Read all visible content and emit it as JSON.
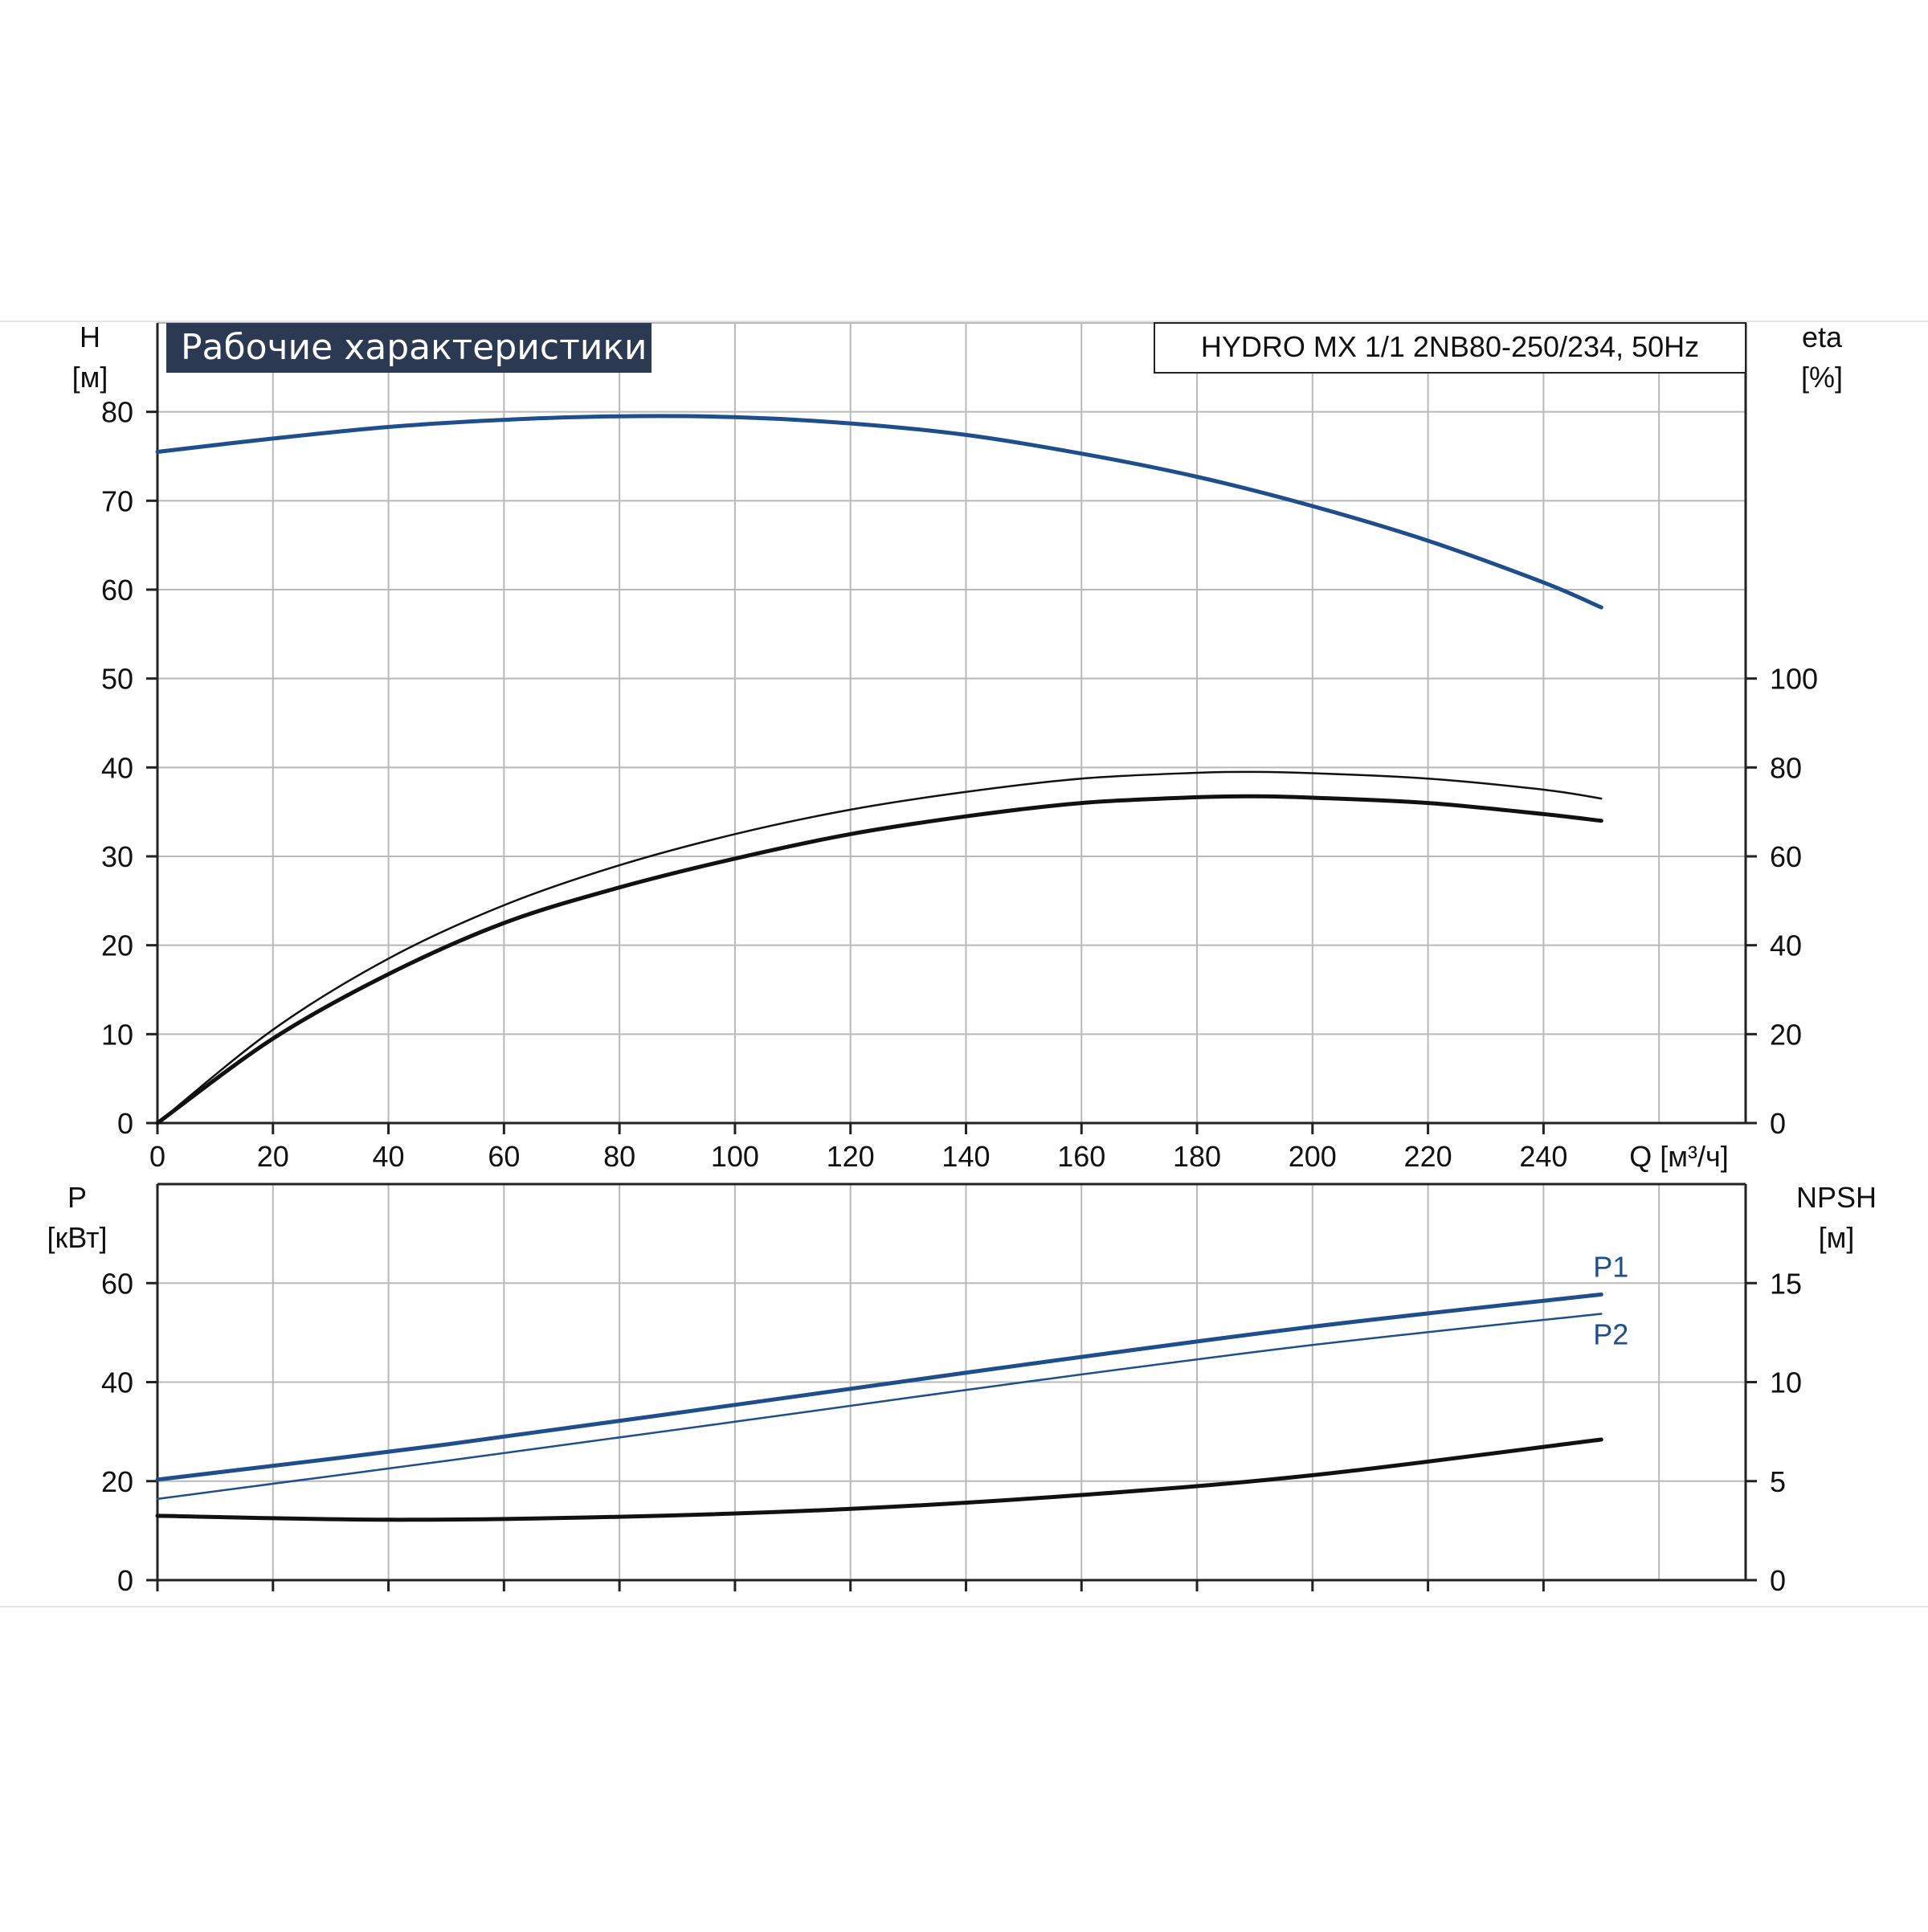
{
  "colors": {
    "background": "#ffffff",
    "grid": "#b9b9b9",
    "axis": "#222222",
    "curve_blue": "#1f4e8c",
    "curve_black": "#111111",
    "title_bg": "#2b3a52",
    "title_fg": "#ffffff"
  },
  "header": {
    "title": "Рабочие характеристики",
    "model": "HYDRO MX 1/1 2NB80-250/234, 50Hz"
  },
  "chart_data": [
    {
      "type": "line",
      "panel": "top",
      "title": "Рабочие характеристики",
      "subtitle": "HYDRO MX 1/1 2NB80-250/234, 50Hz",
      "grid": true,
      "xlabel": "Q [м³/ч]",
      "xlim": [
        0,
        275
      ],
      "xticks": [
        0,
        20,
        40,
        60,
        80,
        100,
        120,
        140,
        160,
        180,
        200,
        220,
        240
      ],
      "ylabel_left": "H",
      "ylabel_left_unit": "[м]",
      "ylim_left": [
        0,
        90
      ],
      "yticks_left": [
        0,
        10,
        20,
        30,
        40,
        50,
        60,
        70,
        80
      ],
      "ylabel_right": "eta",
      "ylabel_right_unit": "[%]",
      "ylim_right": [
        0,
        180
      ],
      "yticks_right": [
        0,
        20,
        40,
        60,
        80,
        100
      ],
      "series": [
        {
          "axis": "left",
          "color": "#1f4e8c",
          "stroke": "thick",
          "x": [
            0,
            20,
            40,
            60,
            80,
            100,
            120,
            140,
            160,
            180,
            200,
            220,
            240,
            250
          ],
          "y": [
            75.5,
            77.0,
            78.3,
            79.1,
            79.5,
            79.4,
            78.7,
            77.4,
            75.3,
            72.7,
            69.4,
            65.5,
            60.8,
            58.0
          ]
        },
        {
          "axis": "right",
          "color": "#111111",
          "stroke": "thin",
          "x": [
            0,
            20,
            40,
            60,
            80,
            100,
            120,
            140,
            160,
            180,
            190,
            200,
            220,
            240,
            250
          ],
          "y": [
            0,
            21,
            37,
            49,
            58,
            65,
            70.5,
            74.5,
            77.5,
            78.8,
            79,
            78.7,
            77.5,
            75,
            73
          ]
        },
        {
          "axis": "right",
          "color": "#111111",
          "stroke": "thick",
          "x": [
            0,
            20,
            40,
            60,
            80,
            100,
            120,
            140,
            160,
            180,
            190,
            200,
            220,
            240,
            250
          ],
          "y": [
            0,
            19,
            33.5,
            45,
            53,
            59.5,
            65,
            69,
            72,
            73.3,
            73.5,
            73.2,
            72,
            69.5,
            68
          ]
        }
      ]
    },
    {
      "type": "line",
      "panel": "bottom",
      "grid": true,
      "xlim": [
        0,
        275
      ],
      "ylabel_left": "P",
      "ylabel_left_unit": "[кВт]",
      "ylim_left": [
        0,
        80
      ],
      "yticks_left": [
        0,
        20,
        40,
        60
      ],
      "ylabel_right": "NPSH",
      "ylabel_right_unit": "[м]",
      "ylim_right": [
        0,
        20
      ],
      "yticks_right": [
        0,
        5,
        10,
        15
      ],
      "series": [
        {
          "name": "P1",
          "axis": "left",
          "color": "#1f4e8c",
          "stroke": "thick",
          "x": [
            0,
            50,
            100,
            150,
            200,
            250
          ],
          "y": [
            20.3,
            27.4,
            35.4,
            43.5,
            51.2,
            57.7
          ]
        },
        {
          "name": "P2",
          "axis": "left",
          "color": "#1f4e8c",
          "stroke": "thin",
          "x": [
            0,
            50,
            100,
            150,
            200,
            250
          ],
          "y": [
            16.4,
            24.1,
            32.0,
            40.0,
            47.5,
            53.8
          ]
        },
        {
          "axis": "right",
          "color": "#111111",
          "stroke": "thick",
          "x": [
            0,
            40,
            80,
            120,
            160,
            200,
            250
          ],
          "y": [
            3.25,
            3.05,
            3.2,
            3.6,
            4.3,
            5.3,
            7.1
          ]
        }
      ]
    }
  ]
}
